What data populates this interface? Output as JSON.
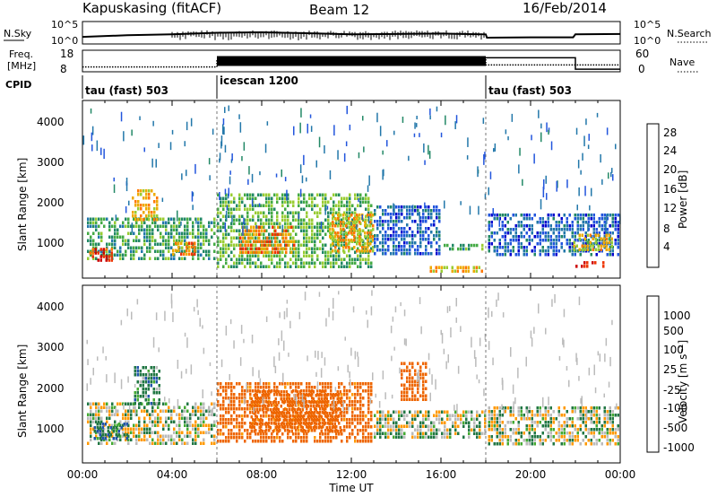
{
  "header": {
    "station": "Kapuskasing (fitACF)",
    "beam": "Beam 12",
    "date": "16/Feb/2014"
  },
  "noise_panel": {
    "left_label": "N.Sky",
    "right_label": "N.Search",
    "left_ticks": [
      "10^5",
      "10^0"
    ],
    "right_ticks": [
      "10^5",
      "10^0"
    ]
  },
  "freq_panel": {
    "left_label_1": "Freq.",
    "left_label_2": "[MHz]",
    "right_label": "Nave",
    "left_ticks": [
      "18",
      "8"
    ],
    "right_ticks": [
      "60",
      "0"
    ]
  },
  "cpid": {
    "label": "CPID",
    "segments": [
      {
        "name": "tau (fast) 503",
        "start_hour": 0
      },
      {
        "name": "icescan 1200",
        "start_hour": 6
      },
      {
        "name": "tau (fast) 503",
        "start_hour": 18
      }
    ]
  },
  "x_axis": {
    "label": "Time UT",
    "ticks": [
      "00:00",
      "04:00",
      "08:00",
      "12:00",
      "16:00",
      "20:00",
      "00:00"
    ]
  },
  "power_panel": {
    "ylabel": "Slant Range [km]",
    "yticks": [
      "4000",
      "3000",
      "2000",
      "1000"
    ],
    "colorbar_label": "Power [dB]",
    "colorbar_ticks": [
      "28",
      "24",
      "20",
      "16",
      "12",
      "8",
      "4"
    ]
  },
  "velocity_panel": {
    "ylabel": "Slant Range [km]",
    "yticks": [
      "4000",
      "3000",
      "2000",
      "1000"
    ],
    "colorbar_label": "Velocity [m s⁻¹]",
    "colorbar_ticks": [
      "1000",
      "500",
      "100",
      "25",
      "-25",
      "-100",
      "-500",
      "-1000"
    ]
  },
  "colors": {
    "power_scale": [
      "#0000cc",
      "#2255dd",
      "#2277aa",
      "#228866",
      "#44aa44",
      "#99cc33",
      "#eeaa00",
      "#ff7700",
      "#ee3300",
      "#cc0000"
    ],
    "velocity_scale": [
      "#1133aa",
      "#2255aa",
      "#227744",
      "#44aa33",
      "#bbbbbb",
      "#bbbbbb",
      "#ff9900",
      "#ee6600",
      "#dd2200",
      "#cc0000"
    ]
  },
  "chart_data": [
    {
      "type": "line",
      "title": "",
      "series": [
        {
          "name": "N.Sky",
          "x": [
            0,
            2,
            4,
            6,
            8,
            10,
            12,
            14,
            16,
            18,
            18.05,
            20,
            21.9,
            22,
            24
          ],
          "y_log10": [
            1.5,
            1.9,
            2.1,
            2.5,
            2.6,
            2.4,
            2.1,
            2.2,
            2.3,
            2.1,
            1.3,
            1.4,
            1.4,
            2.1,
            2.2
          ]
        }
      ],
      "xlim": [
        0,
        24
      ],
      "ylim_log10": [
        0,
        5
      ]
    },
    {
      "type": "line",
      "title": "",
      "series": [
        {
          "name": "Freq.",
          "x": [
            0,
            6,
            6,
            18,
            18,
            24
          ],
          "y": [
            10,
            10,
            14,
            14,
            11,
            11
          ]
        },
        {
          "name": "Nave",
          "x": [
            18,
            22,
            22,
            24
          ],
          "y": [
            40,
            40,
            5,
            5
          ]
        }
      ],
      "xlim": [
        0,
        24
      ],
      "ylim_freq": [
        8,
        18
      ],
      "ylim_nave": [
        0,
        60
      ]
    },
    {
      "type": "heatmap",
      "title": "",
      "quantity": "Power [dB]",
      "xlim": [
        0,
        24
      ],
      "ylim": [
        200,
        4600
      ],
      "crange": [
        0,
        30
      ],
      "regions": [
        {
          "t0": 0.2,
          "t1": 5.9,
          "r0": 700,
          "r1": 1700,
          "value": 12
        },
        {
          "t0": 0.3,
          "t1": 1.3,
          "r0": 650,
          "r1": 950,
          "value": 26
        },
        {
          "t0": 2.2,
          "t1": 3.4,
          "r0": 1600,
          "r1": 2400,
          "value": 20
        },
        {
          "t0": 4.0,
          "t1": 5.0,
          "r0": 800,
          "r1": 1100,
          "value": 22
        },
        {
          "t0": 6.0,
          "t1": 12.9,
          "r0": 500,
          "r1": 2300,
          "value": 14
        },
        {
          "t0": 7.0,
          "t1": 9.5,
          "r0": 800,
          "r1": 1500,
          "value": 22
        },
        {
          "t0": 11.0,
          "t1": 13.0,
          "r0": 900,
          "r1": 1800,
          "value": 20
        },
        {
          "t0": 13.0,
          "t1": 16.0,
          "r0": 800,
          "r1": 2000,
          "value": 6
        },
        {
          "t0": 15.5,
          "t1": 17.8,
          "r0": 350,
          "r1": 500,
          "value": 20
        },
        {
          "t0": 16.0,
          "t1": 17.9,
          "r0": 950,
          "r1": 1050,
          "value": 12
        },
        {
          "t0": 18.1,
          "t1": 23.9,
          "r0": 800,
          "r1": 1800,
          "value": 6
        },
        {
          "t0": 21.9,
          "t1": 23.6,
          "r0": 900,
          "r1": 1300,
          "value": 18
        },
        {
          "t0": 22.0,
          "t1": 23.3,
          "r0": 500,
          "r1": 620,
          "value": 28
        }
      ]
    },
    {
      "type": "heatmap",
      "title": "",
      "quantity": "Velocity [m s⁻¹]",
      "xlim": [
        0,
        24
      ],
      "ylim": [
        200,
        4600
      ],
      "crange": [
        -1000,
        1000
      ],
      "regions": [
        {
          "t0": 0.2,
          "t1": 5.9,
          "r0": 700,
          "r1": 1700,
          "value": 0
        },
        {
          "t0": 0.5,
          "t1": 2.0,
          "r0": 800,
          "r1": 1200,
          "value": 80
        },
        {
          "t0": 2.3,
          "t1": 3.5,
          "r0": 1700,
          "r1": 2600,
          "value": 60
        },
        {
          "t0": 6.0,
          "t1": 12.9,
          "r0": 700,
          "r1": 2200,
          "value": -150
        },
        {
          "t0": 7.5,
          "t1": 11.5,
          "r0": 1000,
          "r1": 2000,
          "value": -300
        },
        {
          "t0": 13.0,
          "t1": 18.0,
          "r0": 800,
          "r1": 1500,
          "value": 0
        },
        {
          "t0": 14.2,
          "t1": 15.3,
          "r0": 1800,
          "r1": 2700,
          "value": -250
        },
        {
          "t0": 18.1,
          "t1": 23.9,
          "r0": 700,
          "r1": 1600,
          "value": 0
        }
      ]
    }
  ]
}
